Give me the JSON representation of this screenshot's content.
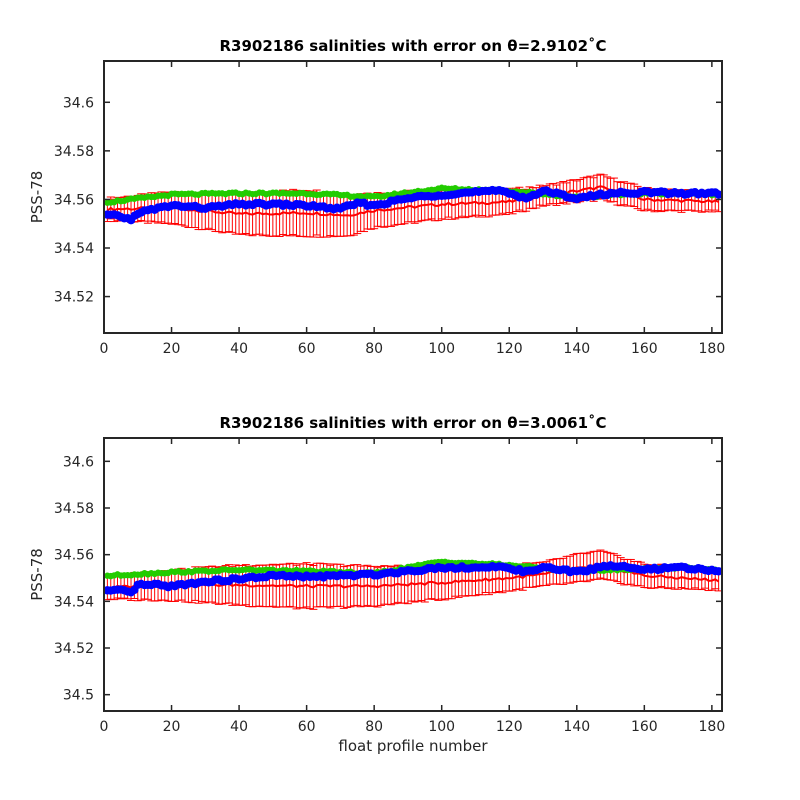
{
  "chart_data": [
    {
      "type": "scatter",
      "title": "R3902186 salinities with error on θ=2.9102˚C",
      "xlabel": "",
      "ylabel": "PSS-78",
      "xlim": [
        0,
        183
      ],
      "ylim": [
        34.505,
        34.617
      ],
      "xticks": [
        0,
        20,
        40,
        60,
        80,
        100,
        120,
        140,
        160,
        180
      ],
      "yticks": [
        34.52,
        34.54,
        34.56,
        34.58,
        34.6
      ],
      "grid": false,
      "legend": "none",
      "series": [
        {
          "color": "#ff0000",
          "kind": "error-band",
          "x": [
            2,
            20,
            40,
            60,
            72,
            80,
            100,
            120,
            130,
            140,
            147,
            160,
            182
          ],
          "y": [
            34.556,
            34.5565,
            34.554,
            34.5545,
            34.5535,
            34.5555,
            34.558,
            34.559,
            34.5615,
            34.5635,
            34.565,
            34.56,
            34.559
          ],
          "err": [
            0.0045,
            0.0065,
            0.0085,
            0.0095,
            0.0085,
            0.007,
            0.006,
            0.005,
            0.004,
            0.0045,
            0.005,
            0.0045,
            0.004
          ]
        },
        {
          "color": "#22cc00",
          "kind": "markers",
          "x": [
            2,
            20,
            40,
            60,
            80,
            100,
            120,
            140,
            160,
            175,
            182
          ],
          "y": [
            34.559,
            34.562,
            34.5625,
            34.5625,
            34.561,
            34.5645,
            34.5635,
            34.561,
            34.5625,
            34.5625,
            34.562
          ]
        },
        {
          "color": "#0000ff",
          "kind": "markers",
          "x": [
            1,
            5,
            8,
            10,
            15,
            20,
            30,
            40,
            50,
            60,
            70,
            75,
            80,
            90,
            100,
            110,
            118,
            125,
            130,
            140,
            150,
            160,
            170,
            182
          ],
          "y": [
            34.5535,
            34.553,
            34.5515,
            34.5545,
            34.556,
            34.5575,
            34.5565,
            34.558,
            34.558,
            34.5575,
            34.556,
            34.5585,
            34.5575,
            34.5605,
            34.562,
            34.563,
            34.5635,
            34.5605,
            34.5635,
            34.5605,
            34.5625,
            34.563,
            34.5625,
            34.5625
          ]
        }
      ]
    },
    {
      "type": "scatter",
      "title": "R3902186 salinities with error on θ=3.0061˚C",
      "xlabel": "float profile number",
      "ylabel": "PSS-78",
      "xlim": [
        0,
        183
      ],
      "ylim": [
        34.493,
        34.61
      ],
      "xticks": [
        0,
        20,
        40,
        60,
        80,
        100,
        120,
        140,
        160,
        180
      ],
      "yticks": [
        34.5,
        34.52,
        34.54,
        34.56,
        34.58,
        34.6
      ],
      "grid": false,
      "legend": "none",
      "series": [
        {
          "color": "#ff0000",
          "kind": "error-band",
          "x": [
            2,
            20,
            40,
            60,
            80,
            100,
            120,
            130,
            140,
            147,
            160,
            182
          ],
          "y": [
            34.546,
            34.547,
            34.547,
            34.5465,
            34.5465,
            34.548,
            34.55,
            34.5515,
            34.554,
            34.5555,
            34.551,
            34.549
          ],
          "err": [
            0.005,
            0.0065,
            0.0085,
            0.0095,
            0.0085,
            0.007,
            0.0055,
            0.005,
            0.006,
            0.006,
            0.005,
            0.004
          ]
        },
        {
          "color": "#22cc00",
          "kind": "markers",
          "x": [
            2,
            20,
            40,
            60,
            80,
            100,
            120,
            140,
            160,
            175,
            182
          ],
          "y": [
            34.551,
            34.5525,
            34.5535,
            34.553,
            34.552,
            34.557,
            34.5555,
            34.553,
            34.554,
            34.5545,
            34.553
          ]
        },
        {
          "color": "#0000ff",
          "kind": "markers",
          "x": [
            1,
            5,
            8,
            10,
            15,
            20,
            30,
            40,
            50,
            60,
            70,
            80,
            90,
            100,
            110,
            120,
            125,
            130,
            140,
            150,
            160,
            170,
            182
          ],
          "y": [
            34.5445,
            34.5445,
            34.5435,
            34.547,
            34.547,
            34.5465,
            34.5485,
            34.5495,
            34.551,
            34.5505,
            34.551,
            34.5515,
            34.553,
            34.5545,
            34.5545,
            34.5545,
            34.5525,
            34.5545,
            34.5525,
            34.5555,
            34.5535,
            34.5545,
            34.553
          ]
        }
      ]
    }
  ]
}
